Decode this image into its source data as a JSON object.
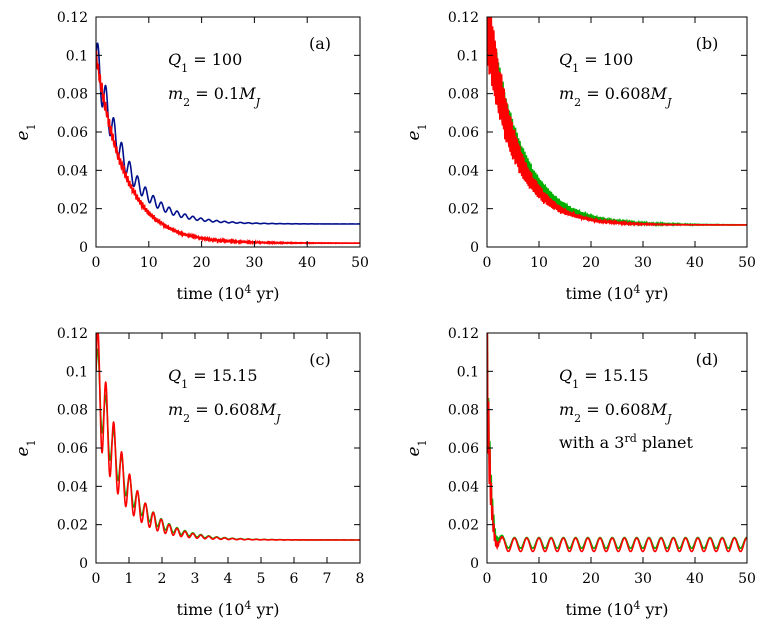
{
  "figure": {
    "description_axis_unit": "time (10^4 yr)"
  },
  "chart_data": [
    {
      "type": "line",
      "panel_label": "(a)",
      "annotations": {
        "q": "Q",
        "q_sub": "1",
        "q_value": " = 100",
        "m": "m",
        "m_sub": "2",
        "m_value": " = 0.1M",
        "m_unit_sub": "J"
      },
      "xlabel": {
        "prefix": "time (10",
        "sup": "4",
        "suffix": " yr)"
      },
      "ylabel": {
        "base": "e",
        "sub": "1"
      },
      "xlim": [
        0,
        50
      ],
      "ylim": [
        0,
        0.12
      ],
      "xticks": [
        "0",
        "10",
        "20",
        "30",
        "40",
        "50"
      ],
      "yticks": [
        "0",
        "0.02",
        "0.04",
        "0.06",
        "0.08",
        "0.1",
        "0.12"
      ],
      "series": [
        {
          "name": "planet 1 (blue)",
          "color": "#000f8c",
          "start": 0.1,
          "amp0": 0.012,
          "tau": 6,
          "final": 0.012,
          "decay_tau": 5.5,
          "period": 1.5,
          "osc_tau": 7,
          "noise": 0
        },
        {
          "name": "planet 1 (red)",
          "color": "#ff0000",
          "start": 0.1,
          "amp0": 0.003,
          "tau": 5,
          "final": 0.002,
          "decay_tau": 5.5,
          "period": 0.35,
          "osc_tau": 8,
          "noise": 0.003
        }
      ]
    },
    {
      "type": "line",
      "panel_label": "(b)",
      "annotations": {
        "q": "Q",
        "q_sub": "1",
        "q_value": " = 100",
        "m": "m",
        "m_sub": "2",
        "m_value": " = 0.608M",
        "m_unit_sub": "J"
      },
      "xlabel": {
        "prefix": "time (10",
        "sup": "4",
        "suffix": " yr)"
      },
      "ylabel": {
        "base": "e",
        "sub": "1"
      },
      "xlim": [
        0,
        50
      ],
      "ylim": [
        0,
        0.12
      ],
      "xticks": [
        "0",
        "10",
        "20",
        "30",
        "40",
        "50"
      ],
      "yticks": [
        "0",
        "0.02",
        "0.04",
        "0.06",
        "0.08",
        "0.1",
        "0.12"
      ],
      "series": [
        {
          "name": "green",
          "color": "#00b000",
          "start": 0.118,
          "amp0": 0.012,
          "tau": 6,
          "final": 0.0115,
          "decay_tau": 6.2,
          "period": 0.3,
          "osc_tau": 7,
          "noise": 0.006
        },
        {
          "name": "red",
          "color": "#ff0000",
          "start": 0.118,
          "amp0": 0.02,
          "tau": 6,
          "final": 0.0115,
          "decay_tau": 5.5,
          "period": 0.25,
          "osc_tau": 5,
          "noise": 0.01
        }
      ]
    },
    {
      "type": "line",
      "panel_label": "(c)",
      "annotations": {
        "q": "Q",
        "q_sub": "1",
        "q_value": " = 15.15",
        "m": "m",
        "m_sub": "2",
        "m_value": " = 0.608M",
        "m_unit_sub": "J"
      },
      "xlabel": {
        "prefix": "time (10",
        "sup": "4",
        "suffix": " yr)"
      },
      "ylabel": {
        "base": "e",
        "sub": "1"
      },
      "xlim": [
        0,
        8
      ],
      "ylim": [
        0,
        0.12
      ],
      "xticks": [
        "0",
        "1",
        "2",
        "3",
        "4",
        "5",
        "6",
        "7",
        "8"
      ],
      "yticks": [
        "0",
        "0.02",
        "0.04",
        "0.06",
        "0.08",
        "0.1",
        "0.12"
      ],
      "series": [
        {
          "name": "green",
          "color": "#00b000",
          "start": 0.1,
          "amp0": 0.018,
          "tau": 0.9,
          "final": 0.012,
          "decay_tau": 0.85,
          "period": 0.24,
          "osc_tau": 1.0,
          "noise": 0
        },
        {
          "name": "red",
          "color": "#ff0000",
          "start": 0.1,
          "amp0": 0.03,
          "tau": 0.9,
          "final": 0.012,
          "decay_tau": 0.8,
          "period": 0.24,
          "osc_tau": 0.9,
          "noise": 0
        }
      ]
    },
    {
      "type": "line",
      "panel_label": "(d)",
      "annotations": {
        "q": "Q",
        "q_sub": "1",
        "q_value": " = 15.15",
        "m": "m",
        "m_sub": "2",
        "m_value": " = 0.608M",
        "m_unit_sub": "J",
        "extra_prefix": "with a 3",
        "extra_sup": "rd",
        "extra_suffix": " planet"
      },
      "xlabel": {
        "prefix": "time (10",
        "sup": "4",
        "suffix": " yr)"
      },
      "ylabel": {
        "base": "e",
        "sub": "1"
      },
      "xlim": [
        0,
        50
      ],
      "ylim": [
        0,
        0.12
      ],
      "xticks": [
        "0",
        "10",
        "20",
        "30",
        "40",
        "50"
      ],
      "yticks": [
        "0",
        "0.02",
        "0.04",
        "0.06",
        "0.08",
        "0.1",
        "0.12"
      ],
      "series": [
        {
          "name": "green",
          "color": "#00b000",
          "start": 0.112,
          "amp0": 0.02,
          "tau": 0.6,
          "final": 0.0105,
          "decay_tau": 0.6,
          "period": 0.25,
          "osc_tau": 0.7,
          "noise": 0.002,
          "long_amp": 0.0028,
          "long_period": 2.35
        },
        {
          "name": "red",
          "color": "#ff0000",
          "start": 0.105,
          "amp0": 0.03,
          "tau": 0.6,
          "final": 0.0095,
          "decay_tau": 0.55,
          "period": 0.25,
          "osc_tau": 0.6,
          "noise": 0.0015,
          "long_amp": 0.0035,
          "long_period": 2.35
        }
      ]
    }
  ]
}
